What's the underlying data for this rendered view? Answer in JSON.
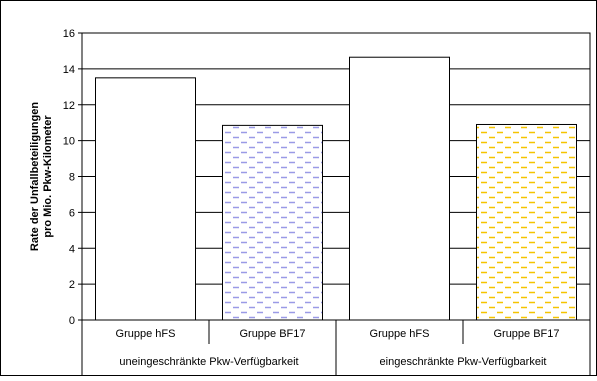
{
  "chart_data": {
    "type": "bar",
    "categories": [
      "Gruppe hFS",
      "Gruppe BF17",
      "Gruppe hFS",
      "Gruppe BF17"
    ],
    "groups": [
      "uneingeschränkte Pkw-Verfügbarkeit",
      "eingeschränkte Pkw-Verfügbarkeit"
    ],
    "values": [
      13.5,
      10.85,
      14.65,
      10.9
    ],
    "bar_styles": [
      "plain",
      "dashed-blue",
      "plain",
      "dashed-yellow"
    ],
    "ylabel_line1": "Rate der Unfallbeteiligungen",
    "ylabel_line2": "pro Mio. Pkw-Kilometer",
    "ylim": [
      0,
      16
    ],
    "yticks": [
      "0",
      "2",
      "4",
      "6",
      "8",
      "10",
      "12",
      "14",
      "16"
    ],
    "grid": true,
    "legend": "none",
    "colors": {
      "bar_fill": "#ffffff",
      "bar_stroke": "#000000",
      "blue_dash": "#9a9ae6",
      "yellow_dash": "#f5c400",
      "grid": "#000000"
    }
  }
}
